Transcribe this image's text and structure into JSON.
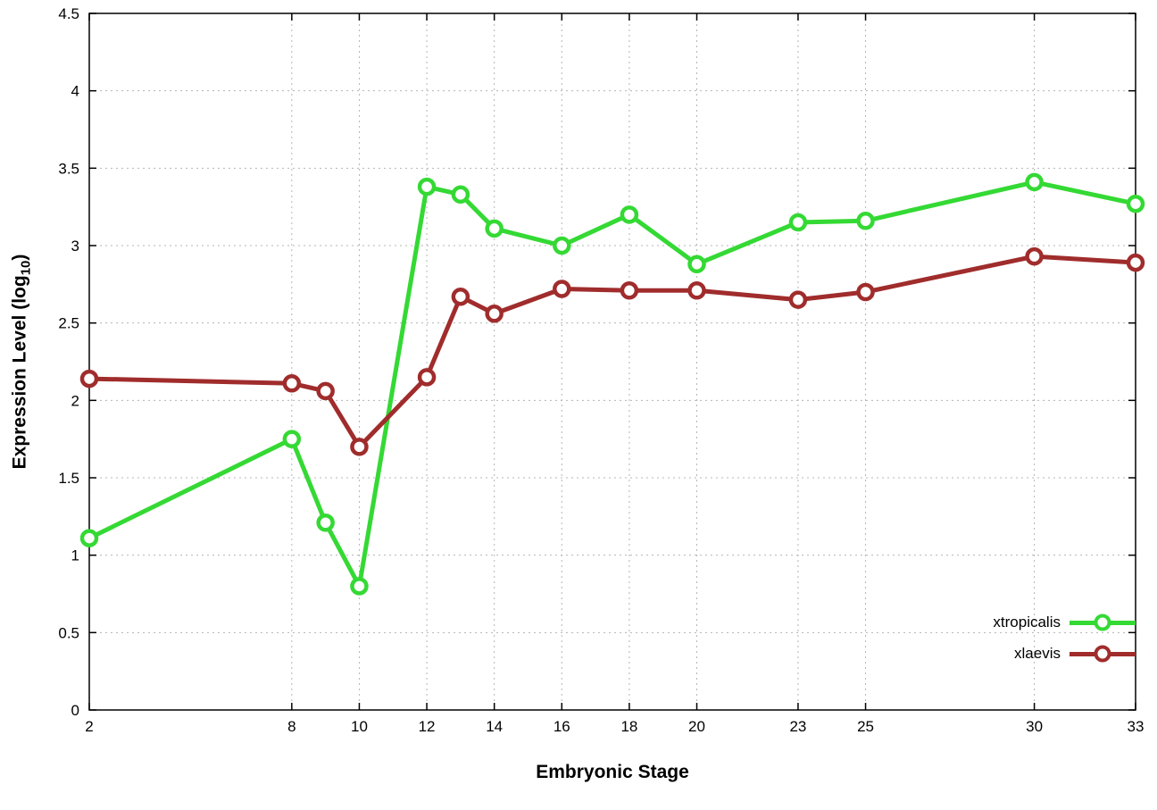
{
  "chart_data": {
    "type": "line",
    "title": "",
    "xlabel": "Embryonic Stage",
    "ylabel": "Expression Level (log10)",
    "ylabel_parts": {
      "main": "Expression Level (log",
      "sub": "10",
      "close": ")"
    },
    "xlim": [
      2,
      33
    ],
    "ylim": [
      0,
      4.5
    ],
    "x_ticks": [
      2,
      8,
      10,
      12,
      14,
      16,
      18,
      20,
      23,
      25,
      30,
      33
    ],
    "y_ticks": [
      0,
      0.5,
      1,
      1.5,
      2,
      2.5,
      3,
      3.5,
      4,
      4.5
    ],
    "grid": true,
    "grid_color": "#b4b4b4",
    "legend_position": "bottom-right",
    "x": [
      2,
      8,
      9,
      10,
      12,
      13,
      14,
      16,
      18,
      20,
      23,
      25,
      30,
      33
    ],
    "series": [
      {
        "name": "xtropicalis",
        "color": "#34d934",
        "values": [
          1.11,
          1.75,
          1.21,
          0.8,
          3.38,
          3.33,
          3.11,
          3.0,
          3.2,
          2.88,
          3.15,
          3.16,
          3.41,
          3.27
        ]
      },
      {
        "name": "xlaevis",
        "color": "#a02c2c",
        "values": [
          2.14,
          2.11,
          2.06,
          1.7,
          2.15,
          2.67,
          2.56,
          2.72,
          2.71,
          2.71,
          2.65,
          2.7,
          2.93,
          2.89
        ]
      }
    ]
  }
}
